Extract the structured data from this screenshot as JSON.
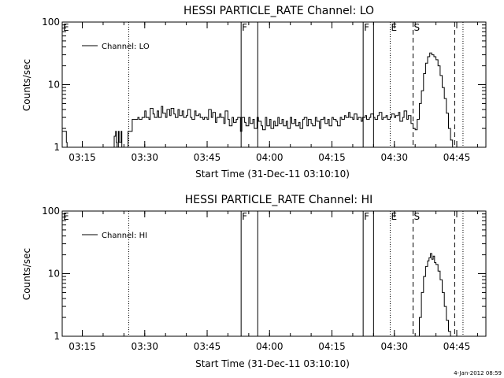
{
  "timestamp": "4-Jan-2012 08:59",
  "chart_data": [
    {
      "type": "line",
      "title": "HESSI PARTICLE_RATE Channel: LO",
      "xlabel": "Start Time (31-Dec-11 03:10:10)",
      "ylabel": "Counts/sec",
      "x_scale": "time",
      "y_scale": "log",
      "xlim": [
        "03:10:10",
        "04:52:00"
      ],
      "ylim": [
        1,
        100
      ],
      "x_ticks": [
        "03:15",
        "03:30",
        "03:45",
        "04:00",
        "04:15",
        "04:30",
        "04:45"
      ],
      "y_ticks": [
        "1",
        "10",
        "100"
      ],
      "legend": {
        "label": "Channel: LO",
        "position": "top-left"
      },
      "flags": [
        {
          "label": "E",
          "time": "03:10:10",
          "line": "none"
        },
        {
          "label": "",
          "time": "03:26:10",
          "line": "dotted"
        },
        {
          "label": "F",
          "time": "03:53:10",
          "line": "solid"
        },
        {
          "label": "",
          "time": "03:57:10",
          "line": "solid"
        },
        {
          "label": "F",
          "time": "04:22:30",
          "line": "solid"
        },
        {
          "label": "",
          "time": "04:25:00",
          "line": "solid"
        },
        {
          "label": "E",
          "time": "04:29:00",
          "line": "dotted"
        },
        {
          "label": "S",
          "time": "04:34:30",
          "line": "dashed"
        },
        {
          "label": "",
          "time": "04:44:30",
          "line": "dashed"
        },
        {
          "label": "",
          "time": "04:46:30",
          "line": "dotted"
        }
      ],
      "series": [
        {
          "name": "Channel: LO",
          "x": [
            "03:10:10",
            "03:11:00",
            "03:11:10",
            "03:11:20",
            "03:22:30",
            "03:22:40",
            "03:23:00",
            "03:23:10",
            "03:23:20",
            "03:23:40",
            "03:23:50",
            "03:24:20",
            "03:24:30",
            "03:26:00",
            "03:27:00",
            "03:27:40",
            "03:28:20",
            "03:28:40",
            "03:29:00",
            "03:29:20",
            "03:30:00",
            "03:30:20",
            "03:31:00",
            "03:31:20",
            "03:32:00",
            "03:32:20",
            "03:33:00",
            "03:33:20",
            "03:34:00",
            "03:34:20",
            "03:35:00",
            "03:35:20",
            "03:36:00",
            "03:36:20",
            "03:37:00",
            "03:37:20",
            "03:38:00",
            "03:38:20",
            "03:39:00",
            "03:39:20",
            "03:40:00",
            "03:40:20",
            "03:41:00",
            "03:41:20",
            "03:42:00",
            "03:42:20",
            "03:43:00",
            "03:43:20",
            "03:44:00",
            "03:44:20",
            "03:45:00",
            "03:45:20",
            "03:46:00",
            "03:46:20",
            "03:47:00",
            "03:47:20",
            "03:48:00",
            "03:48:20",
            "03:49:00",
            "03:49:20",
            "03:50:00",
            "03:50:20",
            "03:51:00",
            "03:51:20",
            "03:52:00",
            "03:52:20",
            "03:53:00",
            "03:53:20",
            "03:54:00",
            "03:54:20",
            "03:55:00",
            "03:55:20",
            "03:56:00",
            "03:56:20",
            "03:57:00",
            "03:57:20",
            "03:58:00",
            "03:58:20",
            "03:59:00",
            "03:59:20",
            "04:00:00",
            "04:00:20",
            "04:01:00",
            "04:01:20",
            "04:02:00",
            "04:02:20",
            "04:03:00",
            "04:03:20",
            "04:04:00",
            "04:04:20",
            "04:05:00",
            "04:05:20",
            "04:06:00",
            "04:06:20",
            "04:07:00",
            "04:07:20",
            "04:08:00",
            "04:08:20",
            "04:09:00",
            "04:09:20",
            "04:10:00",
            "04:10:20",
            "04:11:00",
            "04:11:20",
            "04:12:00",
            "04:12:20",
            "04:13:00",
            "04:13:20",
            "04:14:00",
            "04:14:20",
            "04:15:00",
            "04:15:20",
            "04:16:00",
            "04:16:20",
            "04:17:00",
            "04:17:20",
            "04:18:00",
            "04:18:20",
            "04:19:00",
            "04:19:20",
            "04:20:00",
            "04:20:20",
            "04:21:00",
            "04:21:20",
            "04:22:00",
            "04:22:20",
            "04:23:00",
            "04:23:20",
            "04:24:00",
            "04:24:20",
            "04:25:00",
            "04:25:20",
            "04:26:00",
            "04:26:20",
            "04:27:00",
            "04:27:20",
            "04:28:00",
            "04:28:20",
            "04:29:00",
            "04:29:20",
            "04:30:00",
            "04:30:20",
            "04:31:00",
            "04:31:20",
            "04:32:00",
            "04:32:20",
            "04:33:00",
            "04:33:20",
            "04:34:00",
            "04:34:30",
            "04:35:00",
            "04:35:30",
            "04:36:00",
            "04:36:30",
            "04:37:00",
            "04:37:30",
            "04:38:00",
            "04:38:30",
            "04:39:00",
            "04:39:30",
            "04:40:00",
            "04:40:30",
            "04:41:00",
            "04:41:30",
            "04:42:00",
            "04:42:30",
            "04:43:00",
            "04:43:30",
            "04:44:00",
            "04:44:30",
            "04:45:00"
          ],
          "y": [
            1.8,
            1.8,
            1.2,
            0.9,
            0.9,
            1.5,
            1.8,
            1.2,
            0.9,
            1.8,
            1.2,
            1.8,
            0.9,
            1.8,
            2.8,
            2.8,
            3.0,
            2.8,
            2.8,
            3.0,
            3.8,
            3.0,
            2.8,
            4.2,
            3.4,
            3.0,
            3.8,
            3.0,
            4.5,
            3.5,
            3.0,
            4.0,
            3.2,
            4.2,
            3.4,
            3.0,
            4.0,
            3.2,
            3.8,
            3.0,
            3.2,
            4.0,
            3.0,
            2.8,
            3.8,
            3.2,
            3.4,
            3.0,
            2.8,
            3.0,
            2.8,
            4.0,
            3.0,
            3.6,
            2.5,
            3.0,
            3.4,
            3.0,
            2.4,
            3.8,
            2.8,
            2.2,
            3.0,
            2.5,
            2.8,
            3.0,
            1.8,
            3.0,
            2.5,
            2.2,
            3.0,
            2.4,
            2.8,
            2.0,
            3.0,
            2.6,
            2.2,
            1.9,
            3.0,
            2.2,
            2.8,
            2.0,
            2.6,
            2.2,
            3.0,
            2.4,
            2.8,
            2.2,
            2.6,
            2.0,
            3.0,
            2.4,
            2.8,
            2.2,
            2.5,
            2.0,
            2.8,
            3.0,
            2.2,
            2.8,
            2.4,
            2.2,
            3.0,
            2.6,
            2.0,
            2.8,
            3.0,
            2.4,
            2.8,
            2.2,
            3.0,
            2.8,
            2.6,
            2.2,
            3.0,
            2.8,
            3.2,
            3.0,
            3.6,
            3.0,
            2.8,
            3.4,
            2.8,
            3.0,
            2.6,
            3.0,
            3.2,
            2.8,
            3.0,
            3.4,
            3.0,
            2.8,
            3.2,
            3.6,
            2.8,
            3.0,
            3.2,
            2.8,
            3.0,
            3.4,
            3.0,
            3.2,
            3.6,
            2.6,
            3.0,
            3.8,
            2.8,
            3.2,
            2.4,
            2.0,
            1.9,
            2.8,
            5.0,
            8.0,
            15.0,
            22.0,
            28.0,
            32.0,
            30.0,
            28.0,
            25.0,
            20.0,
            14.0,
            9.0,
            6.0,
            3.5,
            2.0,
            1.3,
            1.0,
            0.9,
            0.9
          ]
        }
      ]
    },
    {
      "type": "line",
      "title": "HESSI PARTICLE_RATE Channel: HI",
      "xlabel": "Start Time (31-Dec-11 03:10:10)",
      "ylabel": "Counts/sec",
      "x_scale": "time",
      "y_scale": "log",
      "xlim": [
        "03:10:10",
        "04:52:00"
      ],
      "ylim": [
        1,
        100
      ],
      "x_ticks": [
        "03:15",
        "03:30",
        "03:45",
        "04:00",
        "04:15",
        "04:30",
        "04:45"
      ],
      "y_ticks": [
        "1",
        "10",
        "100"
      ],
      "legend": {
        "label": "Channel: HI",
        "position": "top-left"
      },
      "flags": [
        {
          "label": "E",
          "time": "03:10:10",
          "line": "none"
        },
        {
          "label": "",
          "time": "03:26:10",
          "line": "dotted"
        },
        {
          "label": "F",
          "time": "03:53:10",
          "line": "solid"
        },
        {
          "label": "",
          "time": "03:57:10",
          "line": "solid"
        },
        {
          "label": "F",
          "time": "04:22:30",
          "line": "solid"
        },
        {
          "label": "",
          "time": "04:25:00",
          "line": "solid"
        },
        {
          "label": "E",
          "time": "04:29:00",
          "line": "dotted"
        },
        {
          "label": "S",
          "time": "04:34:30",
          "line": "dashed"
        },
        {
          "label": "",
          "time": "04:44:30",
          "line": "dashed"
        },
        {
          "label": "",
          "time": "04:46:30",
          "line": "dotted"
        }
      ],
      "series": [
        {
          "name": "Channel: HI",
          "x": [
            "04:35:30",
            "04:36:00",
            "04:36:30",
            "04:37:00",
            "04:37:30",
            "04:38:00",
            "04:38:20",
            "04:38:40",
            "04:39:00",
            "04:39:20",
            "04:39:40",
            "04:40:00",
            "04:40:30",
            "04:41:00",
            "04:41:30",
            "04:42:00",
            "04:42:30",
            "04:43:00",
            "04:43:30",
            "04:44:00"
          ],
          "y": [
            0.9,
            2.0,
            5.0,
            9.0,
            13.0,
            16.0,
            18.0,
            21.0,
            17.0,
            19.0,
            15.0,
            14.0,
            11.0,
            8.0,
            5.0,
            3.0,
            1.8,
            1.2,
            0.95,
            0.9
          ]
        }
      ]
    }
  ]
}
